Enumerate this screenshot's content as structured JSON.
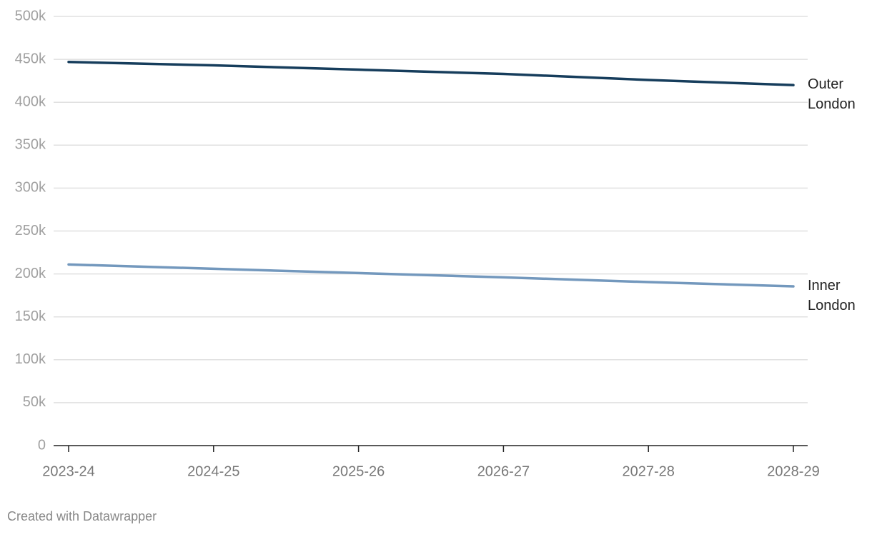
{
  "chart_data": {
    "type": "line",
    "categories": [
      "2023-24",
      "2024-25",
      "2025-26",
      "2026-27",
      "2027-28",
      "2028-29"
    ],
    "series": [
      {
        "name": "Outer London",
        "color": "#163d5c",
        "values": [
          447000,
          443000,
          438000,
          433000,
          426000,
          420000
        ]
      },
      {
        "name": "Inner London",
        "color": "#7398bd",
        "values": [
          211000,
          206000,
          201000,
          196000,
          190500,
          185500
        ]
      }
    ],
    "ylim": [
      0,
      500000
    ],
    "yticks": [
      0,
      {
        "value": 50000,
        "label": "50k"
      },
      {
        "value": 100000,
        "label": "100k"
      },
      {
        "value": 150000,
        "label": "150k"
      },
      {
        "value": 200000,
        "label": "200k"
      },
      {
        "value": 250000,
        "label": "250k"
      },
      {
        "value": 300000,
        "label": "300k"
      },
      {
        "value": 350000,
        "label": "350k"
      },
      {
        "value": 400000,
        "label": "400k"
      },
      {
        "value": 450000,
        "label": "450k"
      },
      {
        "value": 500000,
        "label": "500k"
      }
    ],
    "grid": true,
    "footer": "Created with Datawrapper"
  }
}
